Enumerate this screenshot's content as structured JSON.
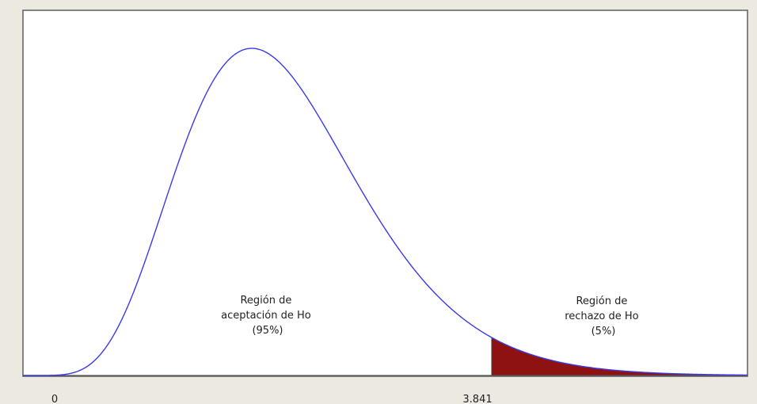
{
  "chart_data": {
    "type": "area",
    "distribution_curve": "chi-square density, 1 degree of freedom",
    "x_ticks": [
      {
        "value": 0,
        "label": "0"
      },
      {
        "value": 3.841,
        "label": "3.841"
      }
    ],
    "critical_value": 3.841,
    "regions": [
      {
        "name": "acceptance",
        "lines": [
          "Región de",
          "aceptación de Ho",
          "(95%)"
        ],
        "probability": 0.95,
        "fill": "#ffffff"
      },
      {
        "name": "rejection",
        "lines": [
          "Región de",
          "rechazo de Ho",
          "(5%)"
        ],
        "probability": 0.05,
        "fill": "#8e1212"
      }
    ],
    "curve_color": "#3a3ae8",
    "axis_color": "#555555",
    "frame_color": "#5f5f5f",
    "plot_background": "#ffffff"
  }
}
